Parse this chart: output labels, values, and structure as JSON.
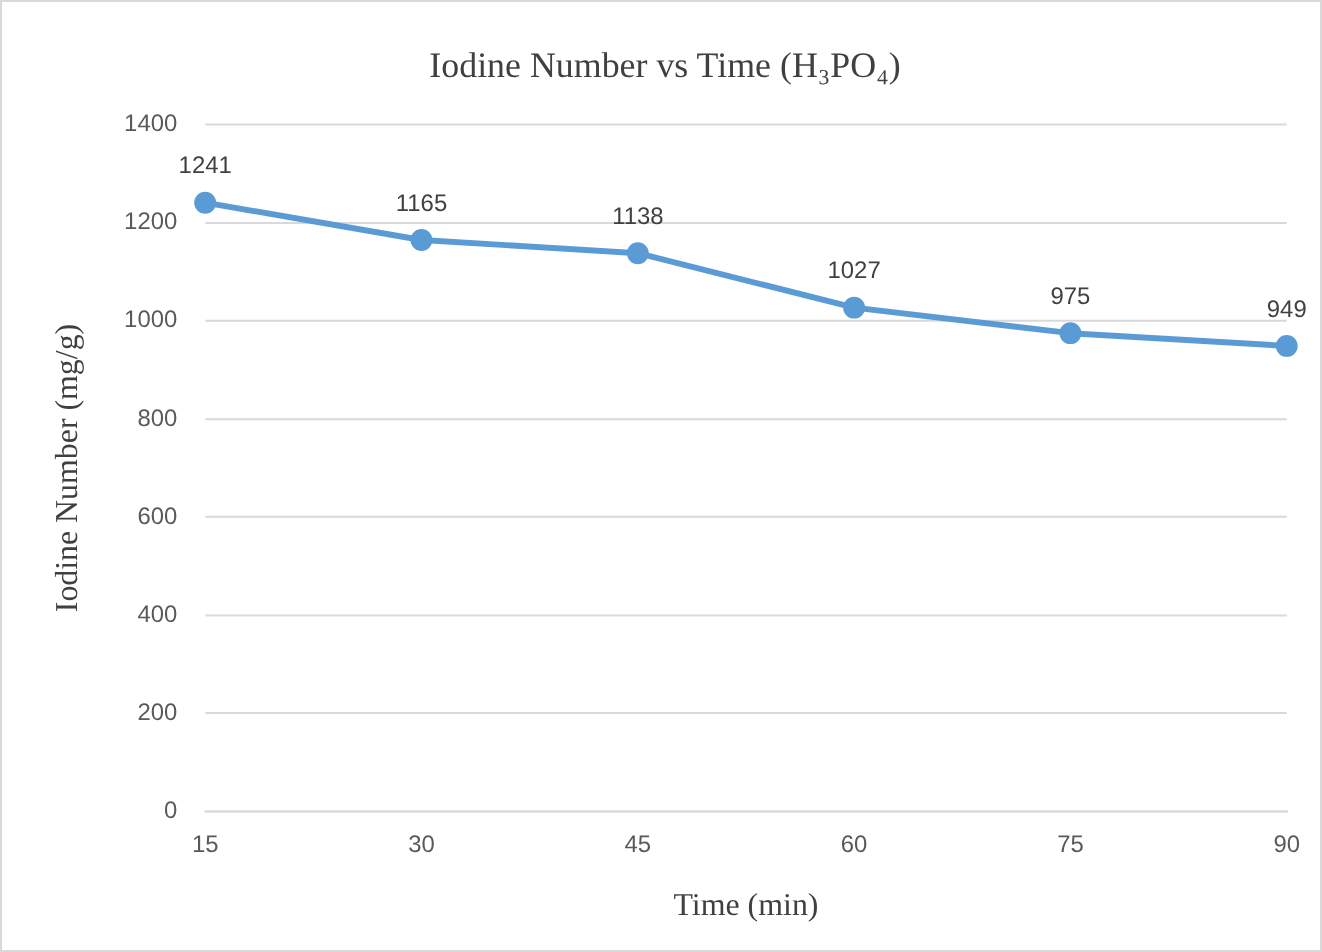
{
  "chart_data": {
    "type": "line",
    "title": "Iodine Number vs Time (H₃PO₄)",
    "xlabel": "Time (min)",
    "ylabel": "Iodine Number (mg/g)",
    "categories": [
      "15",
      "30",
      "45",
      "60",
      "75",
      "90"
    ],
    "series": [
      {
        "color": "#5b9bd5",
        "values": [
          1241,
          1165,
          1138,
          1027,
          975,
          949
        ]
      }
    ],
    "ylim": [
      0,
      1400
    ],
    "yticks": [
      0,
      200,
      400,
      600,
      800,
      1000,
      1200,
      1400
    ],
    "grid": "y",
    "legend": false,
    "marker": "circle",
    "line_style": "solid",
    "data_labels": true
  }
}
